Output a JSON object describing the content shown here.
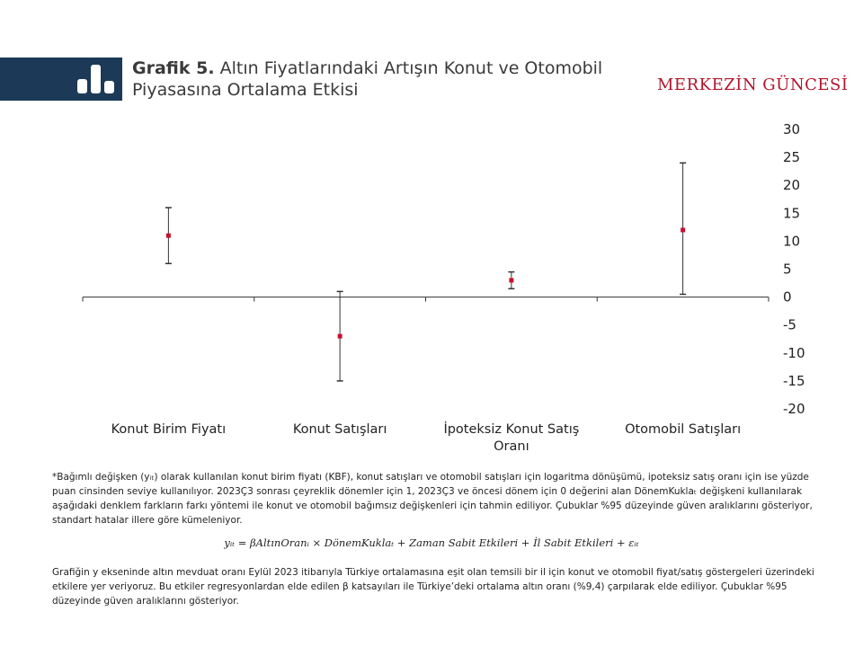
{
  "header": {
    "title_bold": "Grafik 5.",
    "title_rest": "Altın Fiyatlarındaki Artışın Konut ve Otomobil Piyasasına Ortalama Etkisi",
    "brand": "MERKEZİN GÜNCESİ",
    "logo_icon": "bar-chart-icon"
  },
  "colors": {
    "point": "#c8102e",
    "logo_bg": "#1c3a57",
    "brand": "#b0152b"
  },
  "chart_data": {
    "type": "scatter",
    "categories": [
      "Konut Birim Fiyatı",
      "Konut Satışları",
      "İpoteksiz Konut Satış Oranı",
      "Otomobil Satışları"
    ],
    "series": [
      {
        "values": [
          11,
          -7,
          3,
          12
        ],
        "ci_low": [
          6,
          -15,
          1.5,
          0.5
        ],
        "ci_high": [
          16,
          1,
          4.5,
          24
        ]
      }
    ],
    "ylim": [
      -20,
      30
    ],
    "yticks": [
      30,
      25,
      20,
      15,
      10,
      5,
      0,
      -5,
      -10,
      -15,
      -20
    ],
    "y_axis_side": "right",
    "grid": false
  },
  "notes": {
    "note1": "*Bağımlı değişken (yᵢₜ) olarak kullanılan konut birim fiyatı (KBF), konut satışları ve otomobil satışları için logaritma dönüşümü, ipoteksiz satış oranı için ise yüzde puan cinsinden seviye kullanılıyor. 2023Ç3 sonrası çeyreklik dönemler için 1, 2023Ç3 ve öncesi dönem için 0 değerini alan DönemKuklaₜ değişkeni kullanılarak aşağıdaki denklem farkların farkı yöntemi ile konut ve otomobil bağımsız değişkenleri için tahmin ediliyor. Çubuklar %95 düzeyinde güven aralıklarını gösteriyor, standart hatalar illere göre kümeleniyor.",
    "formula": "yᵢₜ = βAltınOranᵢ × DönemKuklaₜ + Zaman Sabit Etkileri + İl Sabit Etkileri + εᵢₜ",
    "note2": "Grafiğin y ekseninde altın mevduat oranı Eylül 2023 itibarıyla Türkiye ortalamasına eşit olan temsili bir il için konut ve otomobil fiyat/satış göstergeleri üzerindeki etkilere yer veriyoruz. Bu etkiler regresyonlardan elde edilen β katsayıları ile Türkiye’deki ortalama altın oranı (%9,4) çarpılarak elde ediliyor. Çubuklar %95 düzeyinde güven aralıklarını gösteriyor."
  }
}
